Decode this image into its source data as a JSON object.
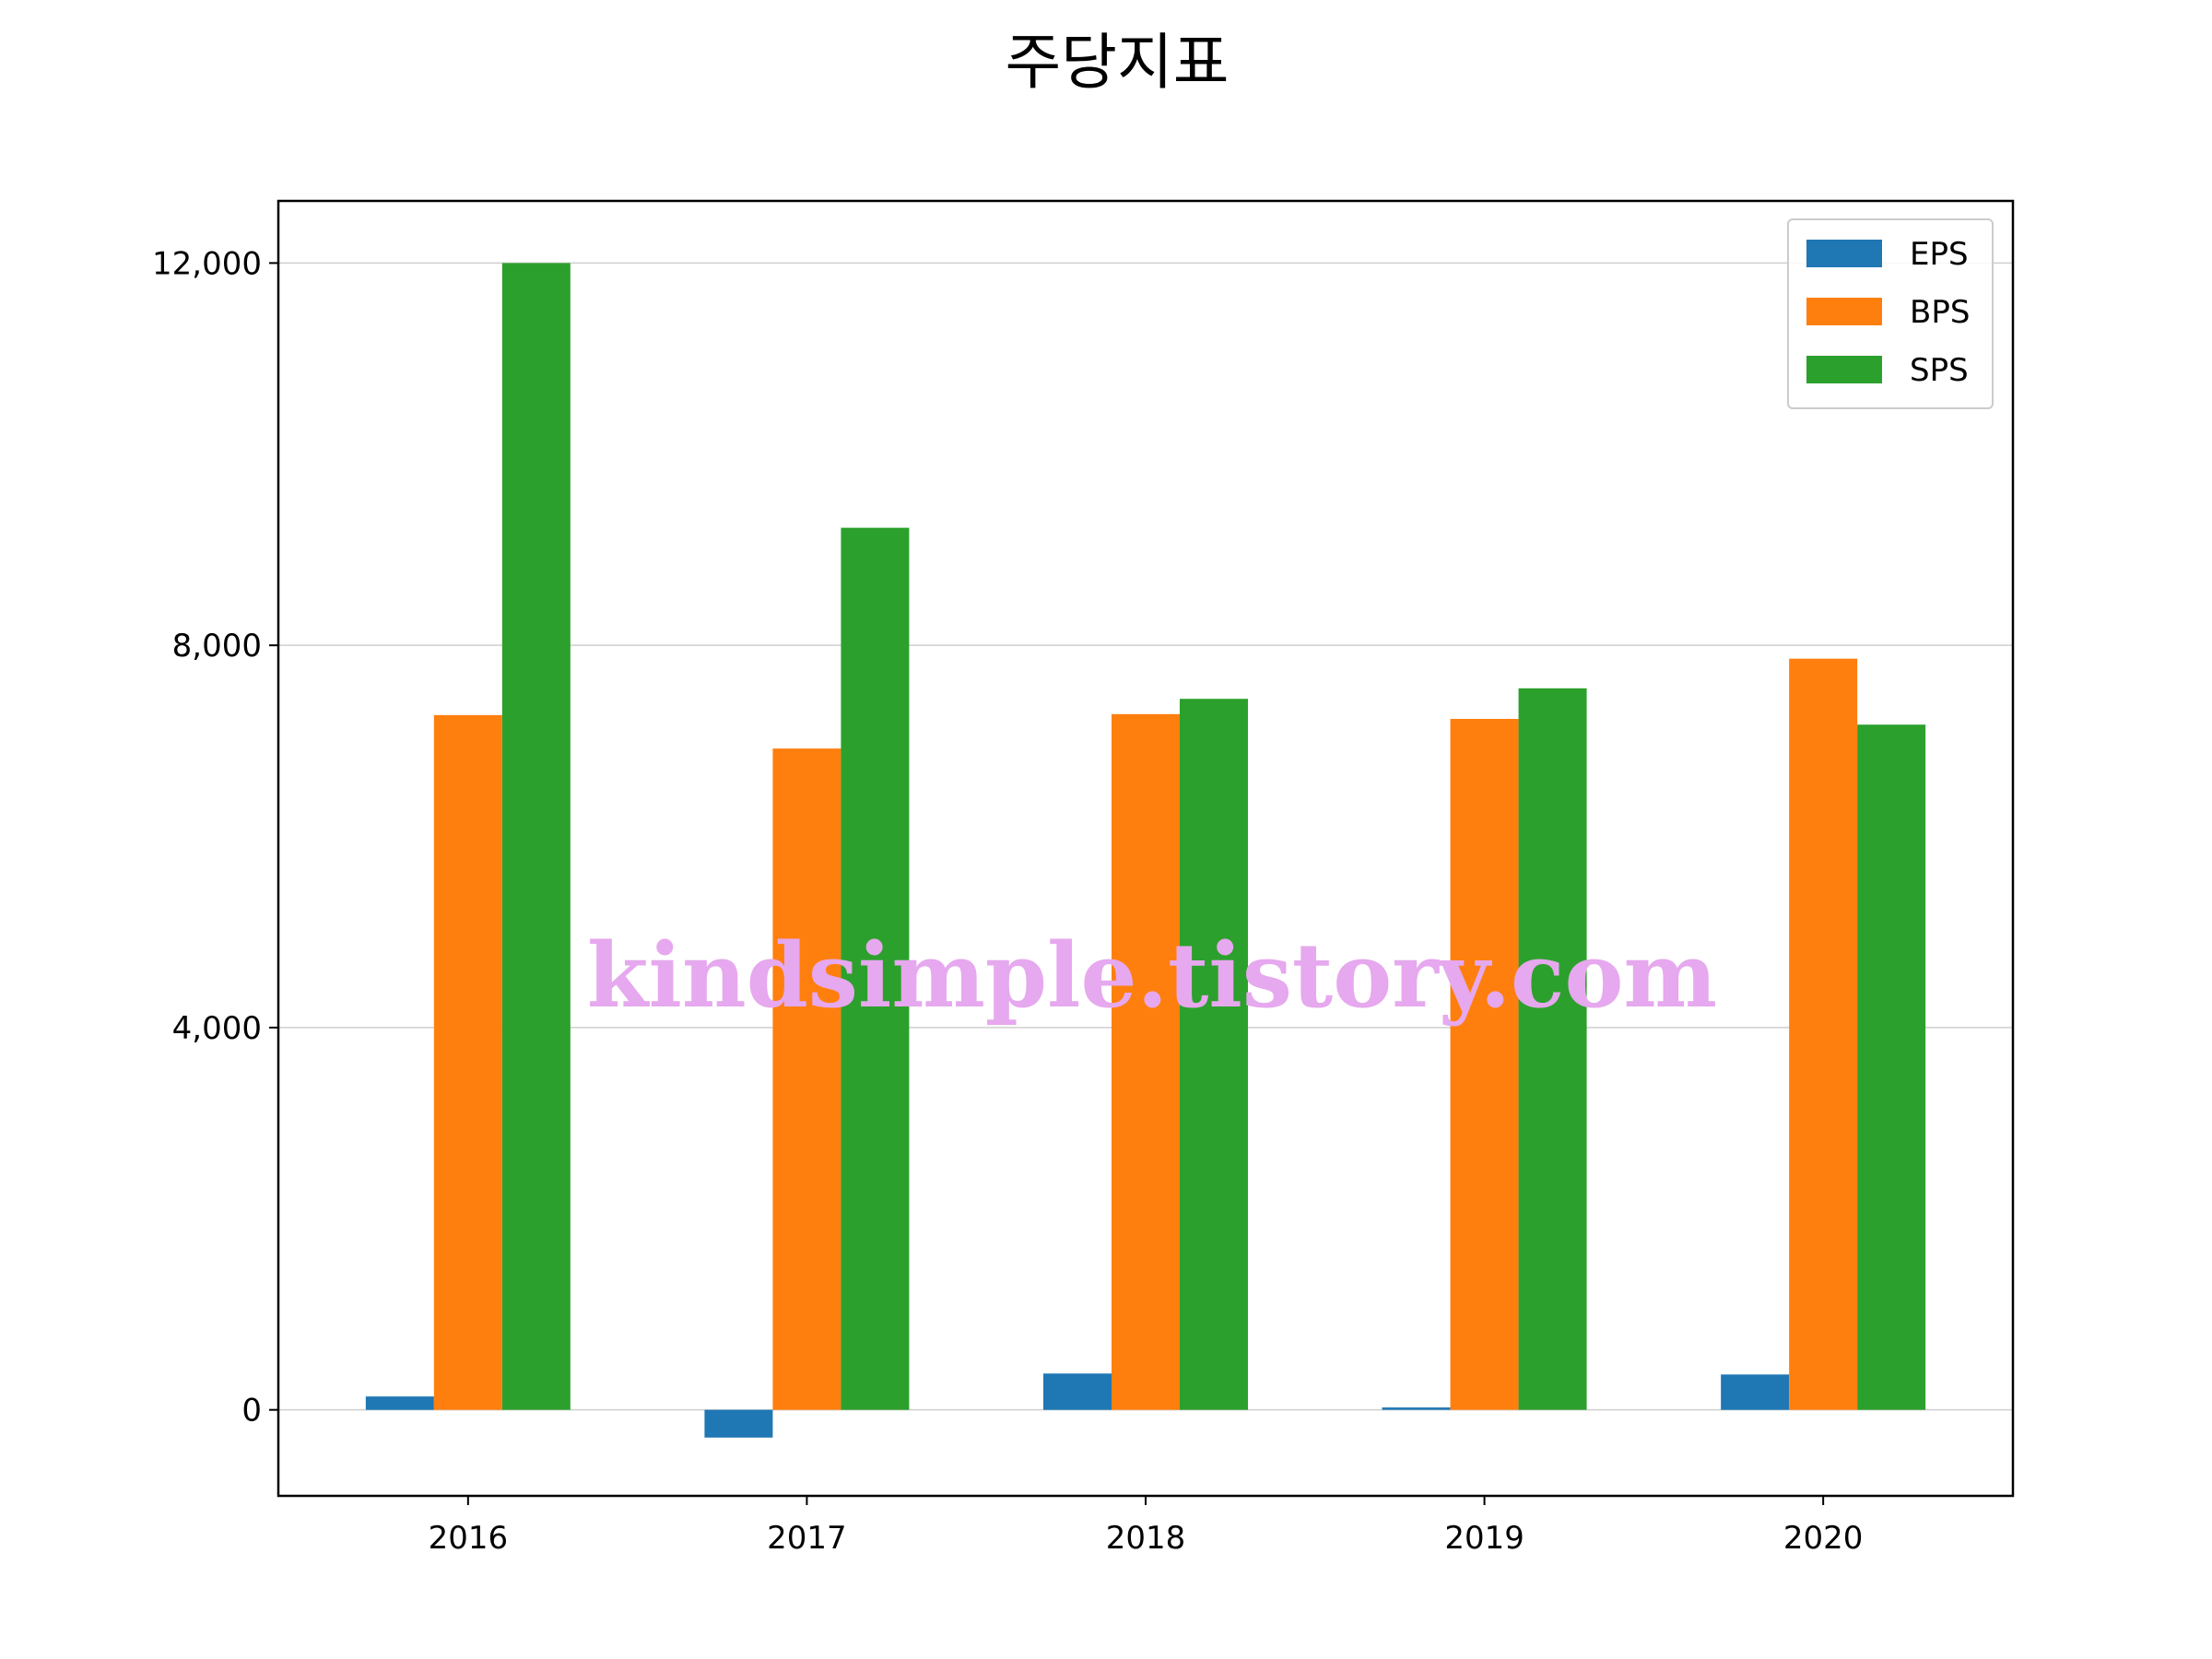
{
  "chart_data": {
    "type": "bar",
    "title": "주당지표",
    "categories": [
      "2016",
      "2017",
      "2018",
      "2019",
      "2020"
    ],
    "series": [
      {
        "name": "EPS",
        "color": "#1f77b4",
        "values": [
          140,
          -290,
          380,
          25,
          370
        ]
      },
      {
        "name": "BPS",
        "color": "#ff7f0e",
        "values": [
          7270,
          6920,
          7280,
          7230,
          7860
        ]
      },
      {
        "name": "SPS",
        "color": "#2ca02c",
        "values": [
          12000,
          9230,
          7440,
          7550,
          7170
        ]
      }
    ],
    "yticks": [
      0,
      4000,
      8000,
      12000
    ],
    "ytick_labels": [
      "0",
      "4,000",
      "8,000",
      "12,000"
    ],
    "ylim": [
      -900,
      12650
    ],
    "grid": "horizontal",
    "legend_position": "top-right",
    "xlabel": "",
    "ylabel": ""
  },
  "watermark": "kindsimple.tistory.com"
}
